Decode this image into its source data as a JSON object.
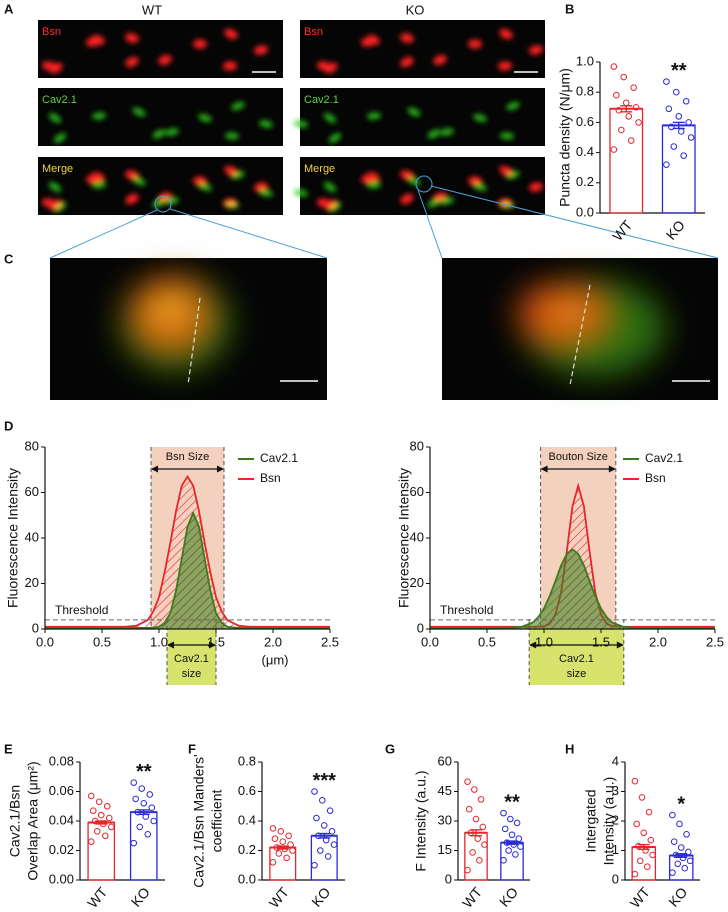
{
  "panels": [
    "A",
    "B",
    "C",
    "D",
    "E",
    "F",
    "G",
    "H"
  ],
  "images": {
    "columns": [
      "WT",
      "KO"
    ],
    "channels": [
      "Bsn",
      "Cav2.1",
      "Merge"
    ]
  },
  "chart_data": [
    {
      "type": "bar_scatter",
      "y_label": [
        "Puncta density (N/μm)"
      ],
      "categories": [
        "WT",
        "KO"
      ],
      "values": [
        0.69,
        0.58
      ],
      "errors": [
        0.02,
        0.02
      ],
      "colors": [
        "#e5262b",
        "#2b2bd6"
      ],
      "points": [
        [
          0.42,
          0.48,
          0.55,
          0.6,
          0.64,
          0.68,
          0.7,
          0.73,
          0.78,
          0.83,
          0.9,
          0.97
        ],
        [
          0.32,
          0.38,
          0.44,
          0.5,
          0.54,
          0.57,
          0.6,
          0.64,
          0.69,
          0.74,
          0.8,
          0.87
        ]
      ],
      "annotation": {
        "label": "**",
        "category": "KO"
      },
      "ylim": [
        0,
        1
      ],
      "yticks": [
        {
          "value": 0,
          "label": "0.0"
        },
        0.2,
        0.4,
        0.6,
        0.8,
        {
          "value": 1,
          "label": "1.0"
        }
      ]
    },
    {
      "type": "line",
      "y_label": "Fluorescence Intensity",
      "x_label": "(μm)",
      "x": [
        0,
        0.5,
        0.7,
        0.8,
        0.9,
        0.95,
        1.0,
        1.05,
        1.1,
        1.15,
        1.2,
        1.25,
        1.3,
        1.35,
        1.4,
        1.45,
        1.5,
        1.55,
        1.6,
        1.7,
        1.8,
        2.0,
        2.5
      ],
      "series": [
        {
          "name": "Cav2.1",
          "color": "#3d7a1c",
          "values": [
            0.5,
            0.5,
            0.5,
            0.5,
            0.5,
            0.6,
            1,
            2.7,
            7,
            17,
            31,
            45,
            51,
            45,
            31,
            17,
            7,
            2.7,
            1,
            0.5,
            0.5,
            0.5,
            0.5
          ]
        },
        {
          "name": "Bsn",
          "color": "#e5262b",
          "values": [
            1,
            1,
            1,
            1.4,
            3.9,
            7.7,
            14,
            25,
            38,
            52,
            63,
            67,
            63,
            52,
            38,
            25,
            14,
            7.7,
            3.9,
            1.4,
            1,
            1,
            1
          ]
        }
      ],
      "xlim": [
        0,
        2.5
      ],
      "xticks": [
        {
          "value": 0,
          "label": "0.0"
        },
        0.5,
        {
          "value": 1,
          "label": "1.0"
        },
        1.5,
        {
          "value": 2,
          "label": "2.0"
        },
        2.5
      ],
      "ylim": [
        0,
        80
      ],
      "yticks": [
        0,
        20,
        40,
        60,
        80
      ],
      "top_region": {
        "label": "Bsn Size",
        "start": 0.93,
        "end": 1.57,
        "color": "#f0c2a8"
      },
      "bottom_region": {
        "label": [
          "Cav2.1",
          "size"
        ],
        "start": 1.07,
        "end": 1.5,
        "color": "#d6e36c"
      },
      "threshold": {
        "label": "Threshold",
        "value": 4
      }
    },
    {
      "type": "line",
      "y_label": "Fluorescence Intensity",
      "x": [
        0,
        0.5,
        0.7,
        0.8,
        0.9,
        0.95,
        1.0,
        1.05,
        1.1,
        1.15,
        1.2,
        1.25,
        1.3,
        1.35,
        1.4,
        1.45,
        1.5,
        1.55,
        1.6,
        1.7,
        1.8,
        2.0,
        2.5
      ],
      "series": [
        {
          "name": "Cav2.1",
          "color": "#3d7a1c",
          "values": [
            0.5,
            0.5,
            0.5,
            0.9,
            2.8,
            5.2,
            9,
            14.5,
            21,
            28,
            33,
            35,
            33,
            28,
            21,
            14.5,
            9,
            5.2,
            2.8,
            0.9,
            0.5,
            0.5,
            0.5
          ]
        },
        {
          "name": "Bsn",
          "color": "#e5262b",
          "values": [
            1,
            1,
            1,
            1,
            1,
            1,
            1.2,
            2.3,
            6.3,
            16,
            34,
            54,
            63,
            54,
            34,
            16,
            6.3,
            2.3,
            1.2,
            1,
            1,
            1,
            1
          ]
        }
      ],
      "xlim": [
        0,
        2.5
      ],
      "xticks": [
        {
          "value": 0,
          "label": "0.0"
        },
        0.5,
        {
          "value": 1,
          "label": "1.0"
        },
        1.5,
        {
          "value": 2,
          "label": "2.0"
        },
        2.5
      ],
      "ylim": [
        0,
        80
      ],
      "yticks": [
        0,
        20,
        40,
        60,
        80
      ],
      "top_region": {
        "label": "Bouton Size",
        "start": 0.97,
        "end": 1.63,
        "color": "#f0c2a8"
      },
      "bottom_region": {
        "label": [
          "Cav2.1",
          "size"
        ],
        "start": 0.87,
        "end": 1.7,
        "color": "#d6e36c"
      },
      "threshold": {
        "label": "Threshold",
        "value": 4
      }
    },
    {
      "type": "bar_scatter",
      "y_label": [
        "Cav2.1/Bsn",
        "Overlap Area (μm²)"
      ],
      "categories": [
        "WT",
        "KO"
      ],
      "values": [
        0.039,
        0.046
      ],
      "errors": [
        0.001,
        0.0015
      ],
      "colors": [
        "#e5262b",
        "#2b2bd6"
      ],
      "points": [
        [
          0.026,
          0.03,
          0.033,
          0.036,
          0.038,
          0.04,
          0.042,
          0.044,
          0.047,
          0.05,
          0.053,
          0.057
        ],
        [
          0.025,
          0.031,
          0.036,
          0.04,
          0.043,
          0.046,
          0.049,
          0.052,
          0.055,
          0.058,
          0.062,
          0.066
        ]
      ],
      "annotation": {
        "label": "**",
        "category": "KO"
      },
      "ylim": [
        0,
        0.08
      ],
      "yticks": [
        {
          "value": 0,
          "label": "0.00"
        },
        0.02,
        0.04,
        0.06,
        0.08
      ]
    },
    {
      "type": "bar_scatter",
      "y_label": [
        "Cav2.1/Bsn Manders'",
        "coefficient"
      ],
      "categories": [
        "WT",
        "KO"
      ],
      "values": [
        0.22,
        0.3
      ],
      "errors": [
        0.01,
        0.015
      ],
      "colors": [
        "#e5262b",
        "#2b2bd6"
      ],
      "points": [
        [
          0.12,
          0.15,
          0.18,
          0.2,
          0.21,
          0.22,
          0.24,
          0.26,
          0.28,
          0.3,
          0.33,
          0.35
        ],
        [
          0.1,
          0.16,
          0.2,
          0.24,
          0.27,
          0.3,
          0.33,
          0.37,
          0.42,
          0.47,
          0.54,
          0.6
        ]
      ],
      "annotation": {
        "label": "***",
        "category": "KO"
      },
      "ylim": [
        0,
        0.8
      ],
      "yticks": [
        {
          "value": 0,
          "label": "0.0"
        },
        0.2,
        0.4,
        0.6,
        0.8
      ]
    },
    {
      "type": "bar_scatter",
      "y_label": [
        "F Intensity (a.u.)"
      ],
      "categories": [
        "WT",
        "KO"
      ],
      "values": [
        24,
        19
      ],
      "errors": [
        1.5,
        0.8
      ],
      "colors": [
        "#e5262b",
        "#2b2bd6"
      ],
      "points": [
        [
          5,
          10,
          14,
          18,
          21,
          24,
          27,
          31,
          36,
          41,
          46,
          50
        ],
        [
          10,
          13,
          15,
          17,
          18,
          19,
          21,
          23,
          26,
          29,
          31,
          34
        ]
      ],
      "annotation": {
        "label": "**",
        "category": "KO"
      },
      "ylim": [
        0,
        60
      ],
      "yticks": [
        0,
        15,
        30,
        45,
        60
      ]
    },
    {
      "type": "bar_scatter",
      "y_label": [
        "Intergated",
        "Intensity (a.u.)"
      ],
      "categories": [
        "WT",
        "KO"
      ],
      "values": [
        1.12,
        0.83
      ],
      "errors": [
        0.08,
        0.06
      ],
      "colors": [
        "#e5262b",
        "#2b2bd6"
      ],
      "points": [
        [
          0.2,
          0.45,
          0.65,
          0.85,
          1.0,
          1.15,
          1.35,
          1.6,
          1.9,
          2.3,
          2.8,
          3.35
        ],
        [
          0.25,
          0.4,
          0.55,
          0.65,
          0.75,
          0.85,
          0.95,
          1.1,
          1.3,
          1.55,
          1.9,
          2.2
        ]
      ],
      "annotation": {
        "label": "*",
        "category": "KO"
      },
      "ylim": [
        0,
        4
      ],
      "yticks": [
        0,
        1,
        2,
        3,
        4
      ]
    }
  ]
}
